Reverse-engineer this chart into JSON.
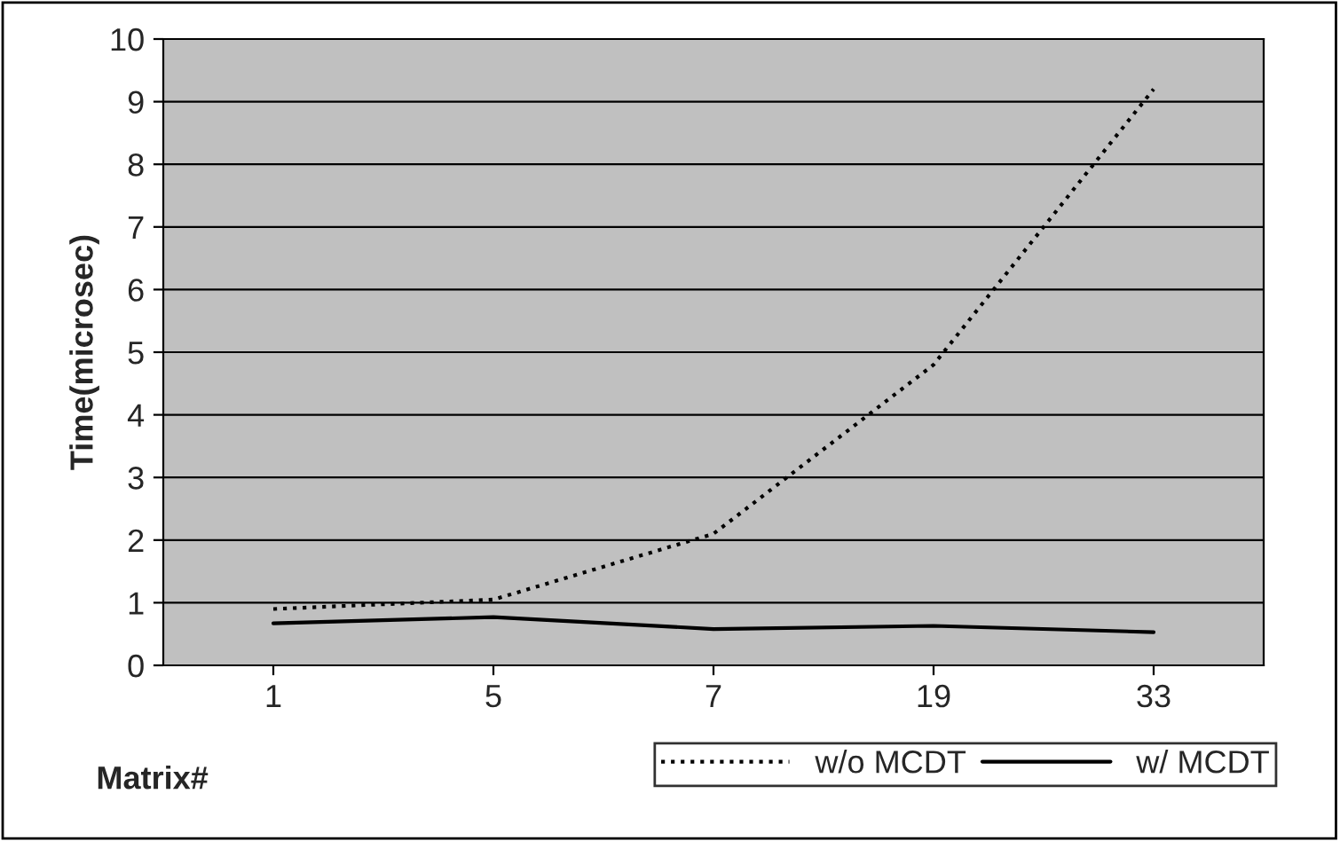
{
  "chart_data": {
    "type": "line",
    "xlabel": "Matrix#",
    "ylabel": "Time(microsec)",
    "categories": [
      "1",
      "5",
      "7",
      "19",
      "33"
    ],
    "series": [
      {
        "name": "w/o MCDT",
        "color": "#000000",
        "line_style": "dotted",
        "values": [
          0.9,
          1.05,
          2.1,
          4.8,
          9.2
        ]
      },
      {
        "name": "w/ MCDT",
        "color": "#000000",
        "line_style": "solid",
        "values": [
          0.67,
          0.77,
          0.58,
          0.63,
          0.53
        ]
      }
    ],
    "ylim": [
      0,
      10
    ],
    "yticks": [
      0,
      1,
      2,
      3,
      4,
      5,
      6,
      7,
      8,
      9,
      10
    ],
    "grid": "y",
    "legend": "bottom right",
    "marker": "none"
  }
}
